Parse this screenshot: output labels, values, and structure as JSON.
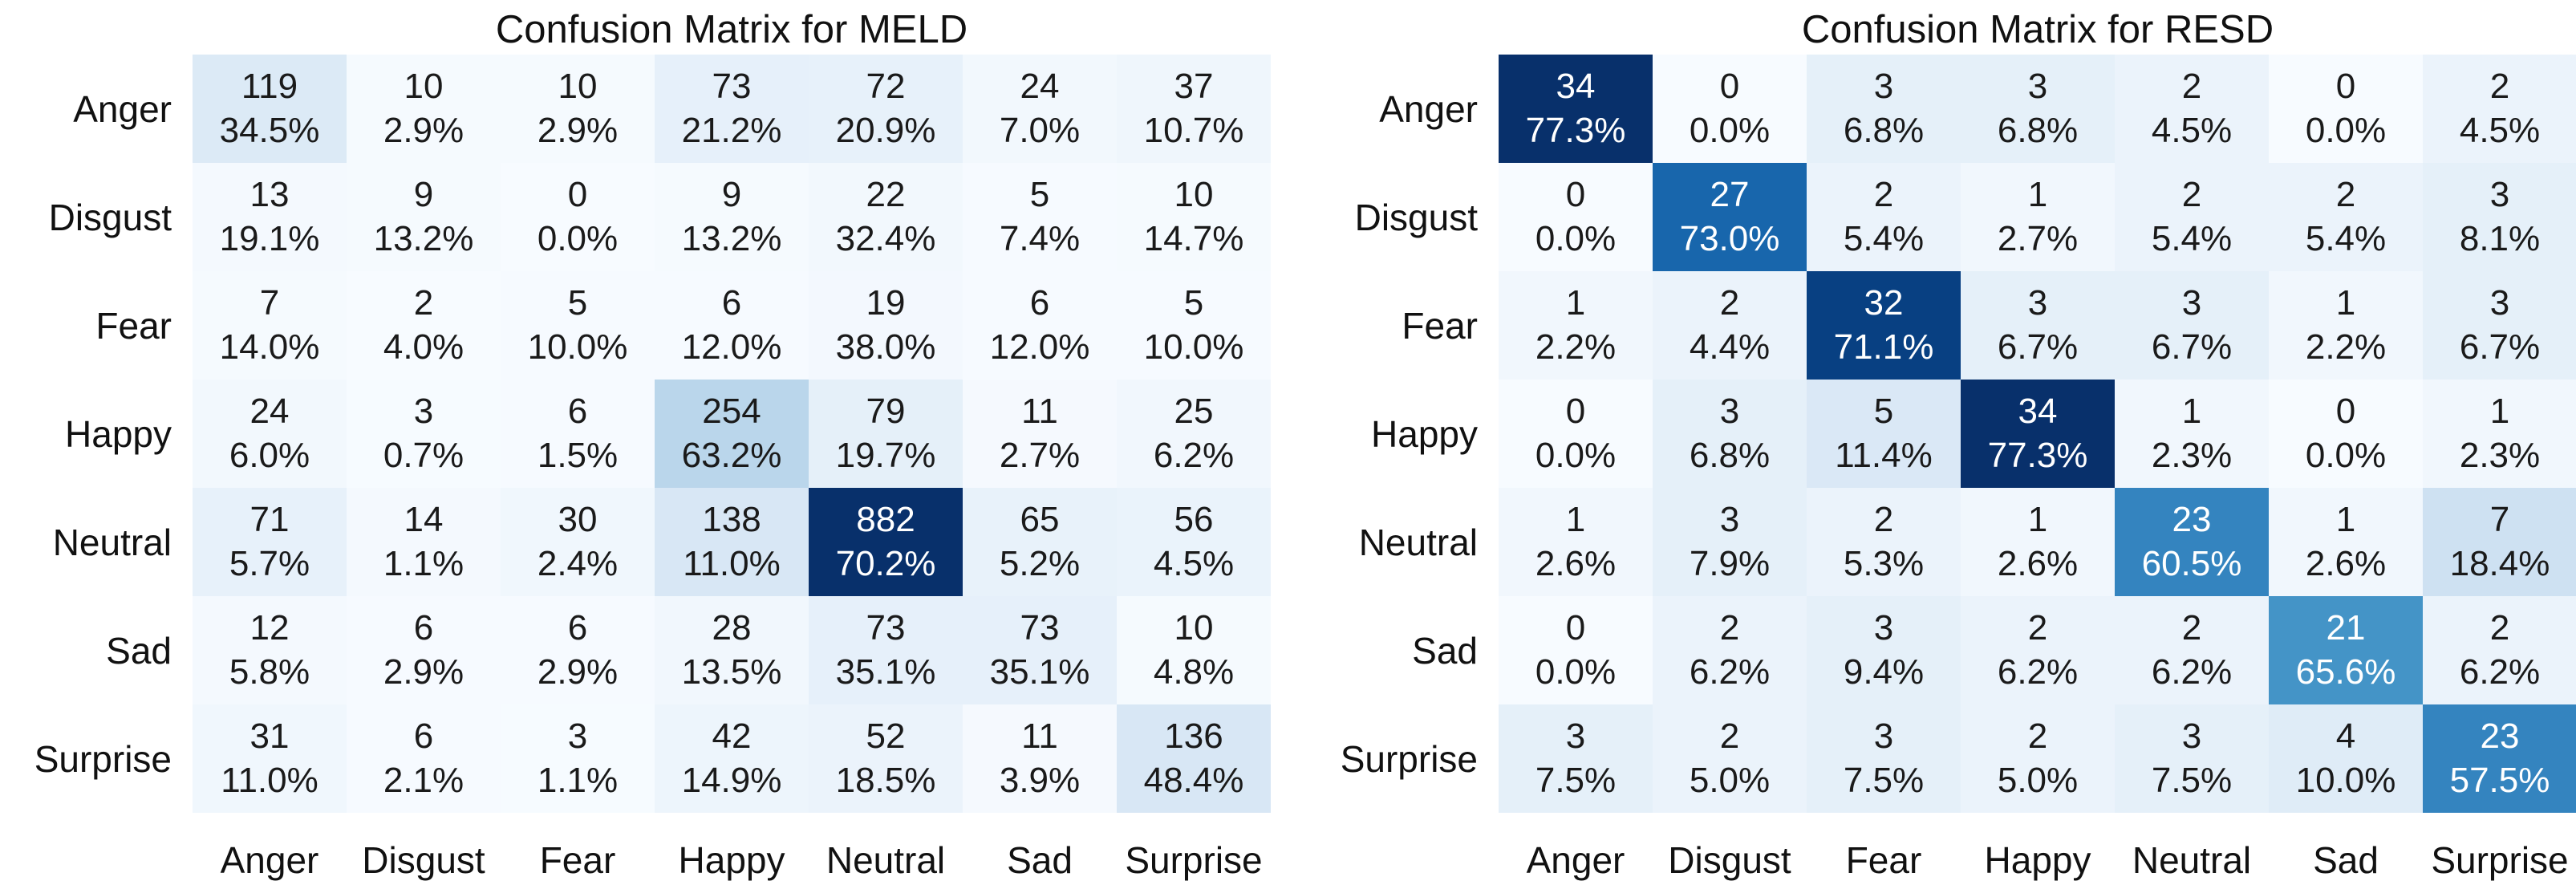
{
  "style": {
    "background": "#ffffff",
    "title_color": "#111111",
    "label_color": "#111111",
    "cell_text_dark": "#1a1a1a",
    "cell_text_light": "#ffffff",
    "colormap_name": "Blues",
    "colormap_anchors": [
      [
        0.0,
        "#f7fbff"
      ],
      [
        0.125,
        "#deebf7"
      ],
      [
        0.25,
        "#c6dbef"
      ],
      [
        0.375,
        "#9ecae1"
      ],
      [
        0.5,
        "#6baed6"
      ],
      [
        0.625,
        "#4292c6"
      ],
      [
        0.75,
        "#2171b5"
      ],
      [
        0.875,
        "#08519c"
      ],
      [
        1.0,
        "#08306b"
      ]
    ]
  },
  "chart_data": [
    {
      "type": "heatmap",
      "title": "Confusion Matrix for MELD",
      "x_categories": [
        "Anger",
        "Disgust",
        "Fear",
        "Happy",
        "Neutral",
        "Sad",
        "Surprise"
      ],
      "y_categories": [
        "Anger",
        "Disgust",
        "Fear",
        "Happy",
        "Neutral",
        "Sad",
        "Surprise"
      ],
      "counts": [
        [
          119,
          10,
          10,
          73,
          72,
          24,
          37
        ],
        [
          13,
          9,
          0,
          9,
          22,
          5,
          10
        ],
        [
          7,
          2,
          5,
          6,
          19,
          6,
          5
        ],
        [
          24,
          3,
          6,
          254,
          79,
          11,
          25
        ],
        [
          71,
          14,
          30,
          138,
          882,
          65,
          56
        ],
        [
          12,
          6,
          6,
          28,
          73,
          73,
          10
        ],
        [
          31,
          6,
          3,
          42,
          52,
          11,
          136
        ]
      ],
      "percent_labels": [
        [
          "34.5%",
          "2.9%",
          "2.9%",
          "21.2%",
          "20.9%",
          "7.0%",
          "10.7%"
        ],
        [
          "19.1%",
          "13.2%",
          "0.0%",
          "13.2%",
          "32.4%",
          "7.4%",
          "14.7%"
        ],
        [
          "14.0%",
          "4.0%",
          "10.0%",
          "12.0%",
          "38.0%",
          "12.0%",
          "10.0%"
        ],
        [
          "6.0%",
          "0.7%",
          "1.5%",
          "63.2%",
          "19.7%",
          "2.7%",
          "6.2%"
        ],
        [
          "5.7%",
          "1.1%",
          "2.4%",
          "11.0%",
          "70.2%",
          "5.2%",
          "4.5%"
        ],
        [
          "5.8%",
          "2.9%",
          "2.9%",
          "13.5%",
          "35.1%",
          "35.1%",
          "4.8%"
        ],
        [
          "11.0%",
          "2.1%",
          "1.1%",
          "14.9%",
          "18.5%",
          "3.9%",
          "48.4%"
        ]
      ],
      "color_vmin": 0,
      "color_vmax": 882,
      "cell_label_format": "count over percent",
      "grid_lines": false,
      "legend": false
    },
    {
      "type": "heatmap",
      "title": "Confusion Matrix for RESD",
      "x_categories": [
        "Anger",
        "Disgust",
        "Fear",
        "Happy",
        "Neutral",
        "Sad",
        "Surprise"
      ],
      "y_categories": [
        "Anger",
        "Disgust",
        "Fear",
        "Happy",
        "Neutral",
        "Sad",
        "Surprise"
      ],
      "counts": [
        [
          34,
          0,
          3,
          3,
          2,
          0,
          2
        ],
        [
          0,
          27,
          2,
          1,
          2,
          2,
          3
        ],
        [
          1,
          2,
          32,
          3,
          3,
          1,
          3
        ],
        [
          0,
          3,
          5,
          34,
          1,
          0,
          1
        ],
        [
          1,
          3,
          2,
          1,
          23,
          1,
          7
        ],
        [
          0,
          2,
          3,
          2,
          2,
          21,
          2
        ],
        [
          3,
          2,
          3,
          2,
          3,
          4,
          23
        ]
      ],
      "percent_labels": [
        [
          "77.3%",
          "0.0%",
          "6.8%",
          "6.8%",
          "4.5%",
          "0.0%",
          "4.5%"
        ],
        [
          "0.0%",
          "73.0%",
          "5.4%",
          "2.7%",
          "5.4%",
          "5.4%",
          "8.1%"
        ],
        [
          "2.2%",
          "4.4%",
          "71.1%",
          "6.7%",
          "6.7%",
          "2.2%",
          "6.7%"
        ],
        [
          "0.0%",
          "6.8%",
          "11.4%",
          "77.3%",
          "2.3%",
          "0.0%",
          "2.3%"
        ],
        [
          "2.6%",
          "7.9%",
          "5.3%",
          "2.6%",
          "60.5%",
          "2.6%",
          "18.4%"
        ],
        [
          "0.0%",
          "6.2%",
          "9.4%",
          "6.2%",
          "6.2%",
          "65.6%",
          "6.2%"
        ],
        [
          "7.5%",
          "5.0%",
          "7.5%",
          "5.0%",
          "7.5%",
          "10.0%",
          "57.5%"
        ]
      ],
      "color_vmin": 0,
      "color_vmax": 34,
      "cell_label_format": "count over percent",
      "grid_lines": false,
      "legend": false
    }
  ]
}
